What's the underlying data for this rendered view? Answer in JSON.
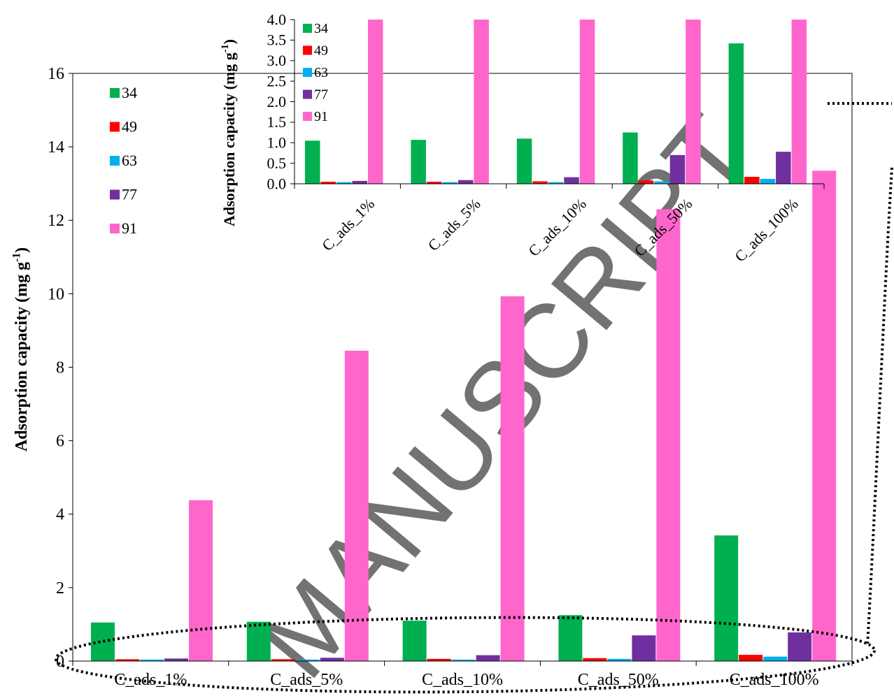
{
  "colors": {
    "34": "#00b050",
    "49": "#ff0000",
    "63": "#00b0f0",
    "77": "#7030a0",
    "91": "#ff66cc",
    "axis": "#000000",
    "watermark": "#c8c8c8"
  },
  "watermark": "MANUSCRIPT",
  "chart_data": [
    {
      "id": "main",
      "type": "bar",
      "ylabel_main": "Adsorption capacity (mg g",
      "ylabel_sup": "-1",
      "ylabel_close": ")",
      "xlabel": "",
      "ylim": [
        0,
        16
      ],
      "yticks": [
        "0",
        "2",
        "4",
        "6",
        "8",
        "10",
        "12",
        "14",
        "16"
      ],
      "categories": [
        "C_ads_1%",
        "C_ads_5%",
        "C_ads_10%",
        "C_ads_50%",
        "C_ads_100%"
      ],
      "legend": [
        "34",
        "49",
        "63",
        "77",
        "91"
      ],
      "legend_position": "top-left",
      "grid": false,
      "series": [
        {
          "name": "34",
          "values": [
            1.05,
            1.07,
            1.1,
            1.25,
            3.42
          ]
        },
        {
          "name": "49",
          "values": [
            0.05,
            0.05,
            0.06,
            0.08,
            0.17
          ]
        },
        {
          "name": "63",
          "values": [
            0.04,
            0.04,
            0.04,
            0.06,
            0.12
          ]
        },
        {
          "name": "77",
          "values": [
            0.07,
            0.09,
            0.16,
            0.7,
            0.78
          ]
        },
        {
          "name": "91",
          "values": [
            4.38,
            8.45,
            9.93,
            12.3,
            13.35
          ]
        }
      ]
    },
    {
      "id": "inset",
      "type": "bar",
      "ylabel_main": "Adsorption capacity (mg g",
      "ylabel_sup": "-1",
      "ylabel_close": ")",
      "xlabel": "",
      "ylim": [
        0,
        4
      ],
      "yticks": [
        "0.0",
        "0.5",
        "1.0",
        "1.5",
        "2.0",
        "2.5",
        "3.0",
        "3.5",
        "4.0"
      ],
      "categories": [
        "C_ads_1%",
        "C_ads_5%",
        "C_ads_10%",
        "C_ads_50%",
        "C_ads_100%"
      ],
      "legend": [
        "34",
        "49",
        "63",
        "77",
        "91"
      ],
      "legend_position": "top-left",
      "grid": false,
      "series": [
        {
          "name": "34",
          "values": [
            1.05,
            1.07,
            1.1,
            1.25,
            3.42
          ]
        },
        {
          "name": "49",
          "values": [
            0.05,
            0.05,
            0.06,
            0.08,
            0.17
          ]
        },
        {
          "name": "63",
          "values": [
            0.04,
            0.04,
            0.04,
            0.06,
            0.12
          ]
        },
        {
          "name": "77",
          "values": [
            0.07,
            0.09,
            0.16,
            0.7,
            0.78
          ]
        },
        {
          "name": "91",
          "values": [
            4.38,
            8.45,
            9.93,
            12.3,
            13.35
          ]
        }
      ]
    }
  ]
}
